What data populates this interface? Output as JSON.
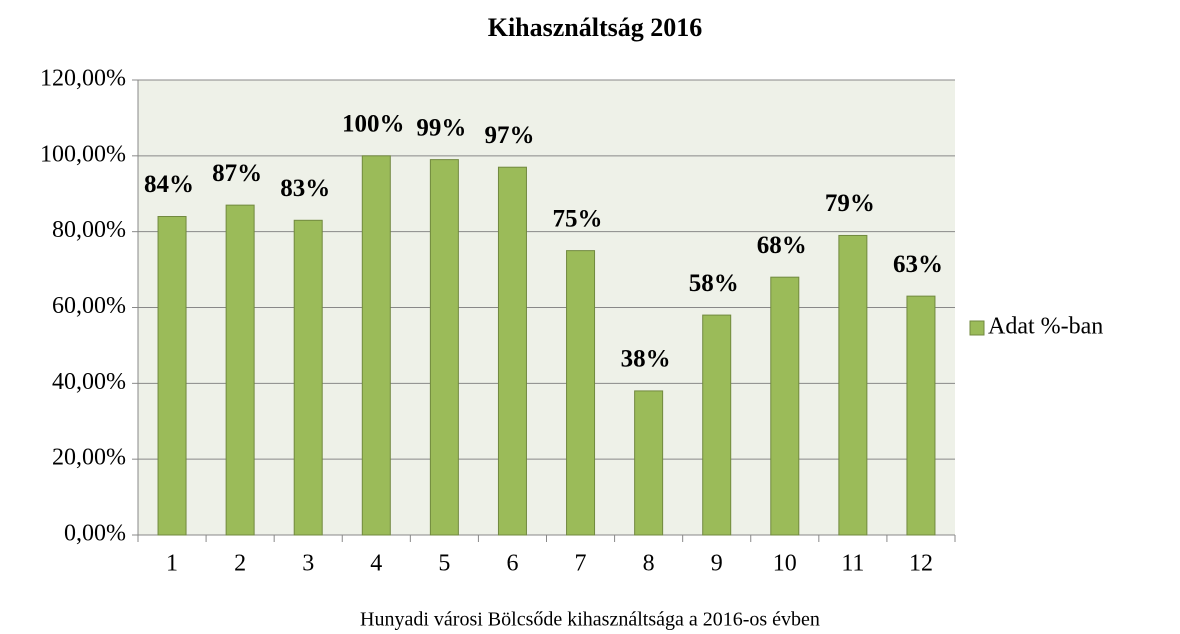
{
  "chart_data": {
    "type": "bar",
    "title": "Kihasználtság 2016",
    "categories": [
      "1",
      "2",
      "3",
      "4",
      "5",
      "6",
      "7",
      "8",
      "9",
      "10",
      "11",
      "12"
    ],
    "series": [
      {
        "name": "Adat %-ban",
        "color": "#9bbb59",
        "values": [
          84,
          87,
          83,
          100,
          99,
          97,
          75,
          38,
          58,
          68,
          79,
          63
        ],
        "value_labels": [
          "84%",
          "87%",
          "83%",
          "100%",
          "99%",
          "97%",
          "75%",
          "38%",
          "58%",
          "68%",
          "79%",
          "63%"
        ]
      }
    ],
    "ylim": [
      0,
      120
    ],
    "yticks": [
      {
        "value": 0,
        "label": "0,00%"
      },
      {
        "value": 20,
        "label": "20,00%"
      },
      {
        "value": 40,
        "label": "40,00%"
      },
      {
        "value": 60,
        "label": "60,00%"
      },
      {
        "value": 80,
        "label": "80,00%"
      },
      {
        "value": 100,
        "label": "100,00%"
      },
      {
        "value": 120,
        "label": "120,00%"
      }
    ],
    "grid": true,
    "legend": "right",
    "caption": "Hunyadi városi Bölcsőde kihasználtsága a 2016-os évben"
  }
}
